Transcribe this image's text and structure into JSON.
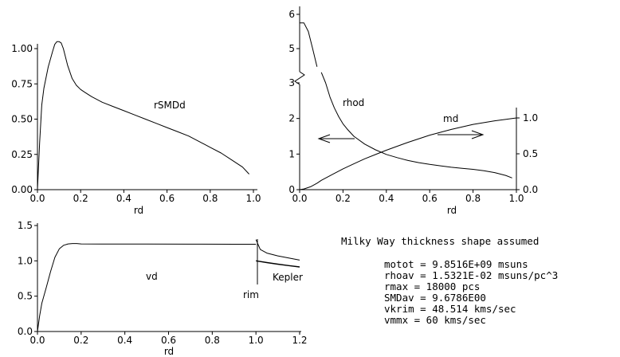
{
  "chart_data": [
    {
      "id": "p1",
      "type": "line",
      "xlabel": "rd",
      "ylabel": "",
      "xlim": [
        0,
        1.0
      ],
      "ylim": [
        0,
        1.05
      ],
      "xticks": [
        "0.0",
        "0.2",
        "0.4",
        "0.6",
        "0.8",
        "1.0"
      ],
      "yticks": [
        "0.00",
        "0.25",
        "0.50",
        "0.75",
        "1.00"
      ],
      "series": [
        {
          "name": "rSMDd",
          "x": [
            0,
            0.01,
            0.02,
            0.03,
            0.05,
            0.07,
            0.08,
            0.09,
            0.1,
            0.11,
            0.12,
            0.14,
            0.16,
            0.18,
            0.2,
            0.22,
            0.25,
            0.3,
            0.35,
            0.4,
            0.45,
            0.5,
            0.55,
            0.6,
            0.65,
            0.7,
            0.75,
            0.8,
            0.85,
            0.9,
            0.95,
            0.98
          ],
          "y": [
            0,
            0.33,
            0.6,
            0.72,
            0.87,
            0.98,
            1.03,
            1.05,
            1.05,
            1.04,
            1.0,
            0.88,
            0.79,
            0.74,
            0.71,
            0.69,
            0.66,
            0.62,
            0.59,
            0.56,
            0.53,
            0.5,
            0.47,
            0.44,
            0.41,
            0.38,
            0.34,
            0.3,
            0.26,
            0.21,
            0.16,
            0.11
          ]
        }
      ]
    },
    {
      "id": "p2",
      "type": "line",
      "xlabel": "rd",
      "xlim": [
        0,
        1.0
      ],
      "ylim_left": [
        0,
        6
      ],
      "ylim_right": [
        0,
        1.0
      ],
      "xticks": [
        "0.0",
        "0.2",
        "0.4",
        "0.6",
        "0.8",
        "1.0"
      ],
      "yticks_left": [
        "0",
        "1",
        "2",
        "3",
        "5",
        "6"
      ],
      "yticks_right": [
        "0.0",
        "0.5",
        "1.0"
      ],
      "series": [
        {
          "name": "rhod",
          "x": [
            0,
            0.02,
            0.04,
            0.06,
            0.08,
            0.1,
            0.12,
            0.14,
            0.16,
            0.18,
            0.2,
            0.22,
            0.25,
            0.3,
            0.35,
            0.4,
            0.45,
            0.5,
            0.55,
            0.6,
            0.65,
            0.7,
            0.75,
            0.8,
            0.85,
            0.9,
            0.95,
            0.98
          ],
          "y": [
            5.75,
            5.75,
            5.5,
            5.0,
            4.4,
            3.6,
            3.0,
            2.6,
            2.3,
            2.05,
            1.85,
            1.7,
            1.5,
            1.28,
            1.12,
            0.99,
            0.9,
            0.82,
            0.76,
            0.71,
            0.67,
            0.63,
            0.6,
            0.57,
            0.53,
            0.48,
            0.4,
            0.33
          ]
        },
        {
          "name": "md",
          "axis": "right",
          "x": [
            0,
            0.02,
            0.05,
            0.08,
            0.1,
            0.15,
            0.2,
            0.25,
            0.3,
            0.35,
            0.4,
            0.5,
            0.6,
            0.7,
            0.8,
            0.9,
            1.0
          ],
          "y": [
            0,
            0.01,
            0.04,
            0.09,
            0.13,
            0.21,
            0.29,
            0.36,
            0.43,
            0.49,
            0.55,
            0.66,
            0.76,
            0.84,
            0.91,
            0.96,
            1.0
          ]
        }
      ]
    },
    {
      "id": "p3",
      "type": "line",
      "xlabel": "rd",
      "xlim": [
        0,
        1.2
      ],
      "ylim": [
        0,
        1.5
      ],
      "xticks": [
        "0.0",
        "0.2",
        "0.4",
        "0.6",
        "0.8",
        "1.0",
        "1.2"
      ],
      "yticks": [
        "0.0",
        "0.5",
        "1.0",
        "1.5"
      ],
      "series": [
        {
          "name": "vd",
          "x": [
            0,
            0.01,
            0.02,
            0.04,
            0.06,
            0.08,
            0.1,
            0.12,
            0.14,
            0.16,
            0.18,
            0.2,
            0.3,
            0.5,
            0.7,
            0.9,
            1.0
          ],
          "y": [
            0,
            0.22,
            0.4,
            0.62,
            0.85,
            1.05,
            1.17,
            1.22,
            1.24,
            1.245,
            1.245,
            1.24,
            1.238,
            1.237,
            1.236,
            1.235,
            1.235
          ],
          "continuation": {
            "x": [
              1.0,
              1.02,
              1.05,
              1.1,
              1.15,
              1.2
            ],
            "y": [
              1.3,
              1.16,
              1.11,
              1.07,
              1.04,
              1.01
            ]
          }
        },
        {
          "name": "Kepler",
          "x": [
            1.0,
            1.05,
            1.1,
            1.15,
            1.2
          ],
          "y": [
            1.0,
            0.976,
            0.953,
            0.933,
            0.913
          ]
        }
      ],
      "annotations": [
        "rim"
      ],
      "rim_x": 1.0
    }
  ],
  "labels": {
    "p1_curve": "rSMDd",
    "p1_xlabel": "rd",
    "p2_rhod": "rhod",
    "p2_md": "md",
    "p2_xlabel": "rd",
    "p3_vd": "vd",
    "p3_kepler": "Kepler",
    "p3_rim": "rim",
    "p3_xlabel": "rd"
  },
  "info": {
    "title": "Milky Way thickness shape assumed",
    "lines": [
      "motot = 9.8516E+09 msuns",
      "rhoav = 1.5321E-02 msuns/pc^3",
      "rmax = 18000 pcs",
      "SMDav = 9.6786E00",
      "vkrim = 48.514 kms/sec",
      "vmmx = 60 kms/sec"
    ]
  }
}
